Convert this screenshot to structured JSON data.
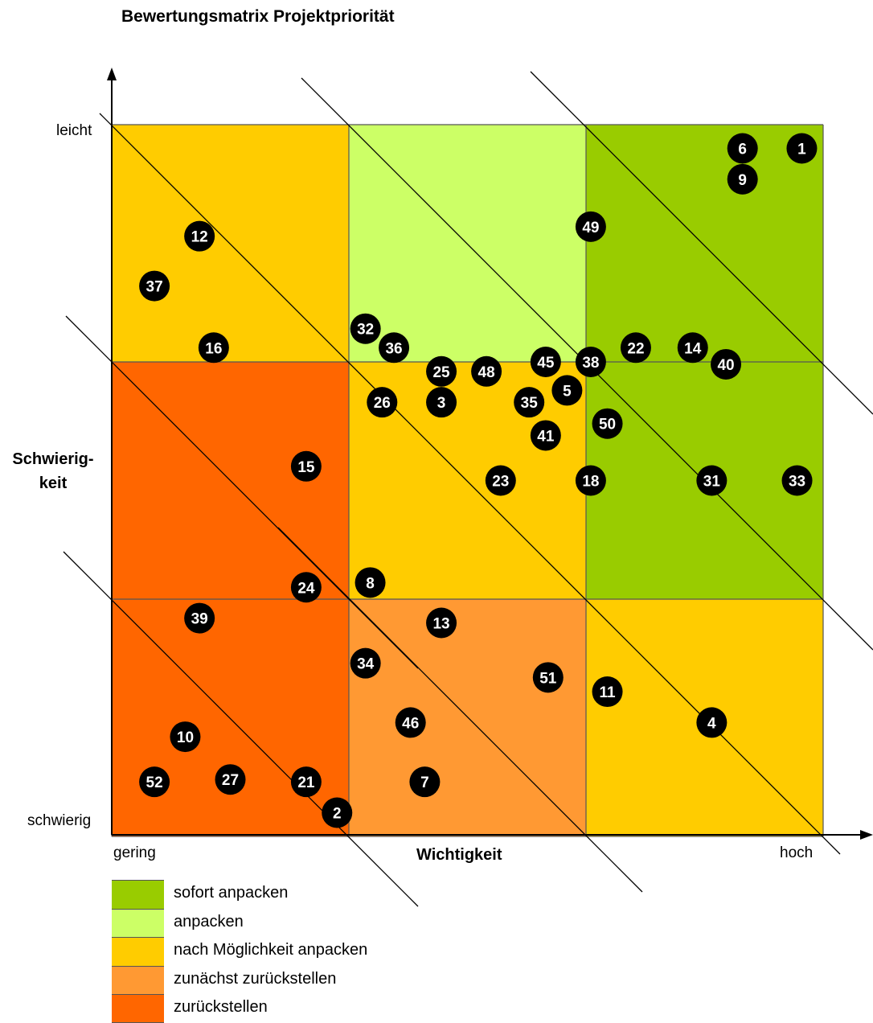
{
  "title": "Bewertungsmatrix Projektpriorität",
  "axes": {
    "y_label": "Schwierig-\nkeit",
    "y_top": "leicht",
    "y_bottom": "schwierig",
    "x_label": "Wichtigkeit",
    "x_left": "gering",
    "x_right": "hoch"
  },
  "colors": {
    "sofort": "#99CC00",
    "anpacken": "#CCFF66",
    "nach_moeglichkeit": "#FFCC00",
    "zurueck_zunaechst": "#FF9933",
    "zurueckstellen": "#FF6600"
  },
  "cells": [
    [
      "nach_moeglichkeit",
      "anpacken",
      "sofort"
    ],
    [
      "zurueckstellen",
      "nach_moeglichkeit",
      "sofort"
    ],
    [
      "zurueckstellen",
      "zurueck_zunaechst",
      "nach_moeglichkeit"
    ]
  ],
  "legend": [
    {
      "key": "sofort",
      "label": "sofort anpacken"
    },
    {
      "key": "anpacken",
      "label": "anpacken"
    },
    {
      "key": "nach_moeglichkeit",
      "label": "nach Möglichkeit anpacken"
    },
    {
      "key": "zurueck_zunaechst",
      "label": "zunächst zurückstellen"
    },
    {
      "key": "zurueckstellen",
      "label": "zurückstellen"
    }
  ],
  "projects": [
    {
      "id": "1",
      "wichtigkeit": 2.91,
      "leichtigkeit": 2.9
    },
    {
      "id": "6",
      "wichtigkeit": 2.66,
      "leichtigkeit": 2.9
    },
    {
      "id": "9",
      "wichtigkeit": 2.66,
      "leichtigkeit": 2.77
    },
    {
      "id": "49",
      "wichtigkeit": 2.02,
      "leichtigkeit": 2.57
    },
    {
      "id": "12",
      "wichtigkeit": 0.37,
      "leichtigkeit": 2.53
    },
    {
      "id": "37",
      "wichtigkeit": 0.18,
      "leichtigkeit": 2.32
    },
    {
      "id": "32",
      "wichtigkeit": 1.07,
      "leichtigkeit": 2.14
    },
    {
      "id": "16",
      "wichtigkeit": 0.43,
      "leichtigkeit": 2.06
    },
    {
      "id": "36",
      "wichtigkeit": 1.19,
      "leichtigkeit": 2.06
    },
    {
      "id": "22",
      "wichtigkeit": 2.21,
      "leichtigkeit": 2.06
    },
    {
      "id": "14",
      "wichtigkeit": 2.45,
      "leichtigkeit": 2.06
    },
    {
      "id": "45",
      "wichtigkeit": 1.83,
      "leichtigkeit": 2.0
    },
    {
      "id": "38",
      "wichtigkeit": 2.02,
      "leichtigkeit": 2.0
    },
    {
      "id": "40",
      "wichtigkeit": 2.59,
      "leichtigkeit": 1.99
    },
    {
      "id": "25",
      "wichtigkeit": 1.39,
      "leichtigkeit": 1.96
    },
    {
      "id": "48",
      "wichtigkeit": 1.58,
      "leichtigkeit": 1.96
    },
    {
      "id": "5",
      "wichtigkeit": 1.92,
      "leichtigkeit": 1.88
    },
    {
      "id": "26",
      "wichtigkeit": 1.14,
      "leichtigkeit": 1.83
    },
    {
      "id": "3",
      "wichtigkeit": 1.39,
      "leichtigkeit": 1.83
    },
    {
      "id": "35",
      "wichtigkeit": 1.76,
      "leichtigkeit": 1.83
    },
    {
      "id": "50",
      "wichtigkeit": 2.09,
      "leichtigkeit": 1.74
    },
    {
      "id": "41",
      "wichtigkeit": 1.83,
      "leichtigkeit": 1.69
    },
    {
      "id": "15",
      "wichtigkeit": 0.82,
      "leichtigkeit": 1.56
    },
    {
      "id": "23",
      "wichtigkeit": 1.64,
      "leichtigkeit": 1.5
    },
    {
      "id": "18",
      "wichtigkeit": 2.02,
      "leichtigkeit": 1.5
    },
    {
      "id": "31",
      "wichtigkeit": 2.53,
      "leichtigkeit": 1.5
    },
    {
      "id": "33",
      "wichtigkeit": 2.89,
      "leichtigkeit": 1.5
    },
    {
      "id": "8",
      "wichtigkeit": 1.09,
      "leichtigkeit": 1.07
    },
    {
      "id": "24",
      "wichtigkeit": 0.82,
      "leichtigkeit": 1.05
    },
    {
      "id": "39",
      "wichtigkeit": 0.37,
      "leichtigkeit": 0.92
    },
    {
      "id": "13",
      "wichtigkeit": 1.39,
      "leichtigkeit": 0.9
    },
    {
      "id": "34",
      "wichtigkeit": 1.07,
      "leichtigkeit": 0.73
    },
    {
      "id": "51",
      "wichtigkeit": 1.84,
      "leichtigkeit": 0.67
    },
    {
      "id": "11",
      "wichtigkeit": 2.09,
      "leichtigkeit": 0.61
    },
    {
      "id": "4",
      "wichtigkeit": 2.53,
      "leichtigkeit": 0.48
    },
    {
      "id": "46",
      "wichtigkeit": 1.26,
      "leichtigkeit": 0.48
    },
    {
      "id": "10",
      "wichtigkeit": 0.31,
      "leichtigkeit": 0.42
    },
    {
      "id": "52",
      "wichtigkeit": 0.18,
      "leichtigkeit": 0.23
    },
    {
      "id": "27",
      "wichtigkeit": 0.5,
      "leichtigkeit": 0.24
    },
    {
      "id": "21",
      "wichtigkeit": 0.82,
      "leichtigkeit": 0.23
    },
    {
      "id": "7",
      "wichtigkeit": 1.32,
      "leichtigkeit": 0.23
    },
    {
      "id": "2",
      "wichtigkeit": 0.95,
      "leichtigkeit": 0.1
    }
  ]
}
